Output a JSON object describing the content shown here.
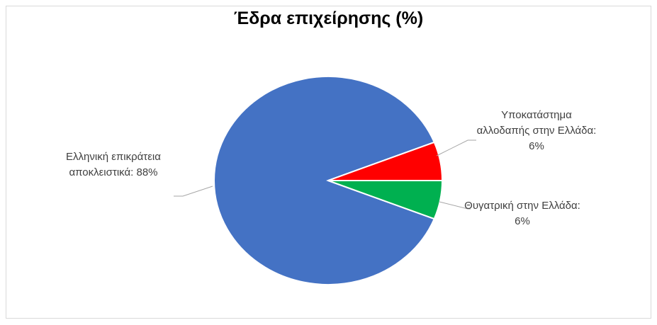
{
  "chart_data": {
    "type": "pie",
    "title": "Έδρα επιχείρησης (%)",
    "values": [
      88,
      6,
      6
    ],
    "value_labels": [
      "Ελληνική επικράτεια αποκλειστικά: 88%",
      "Υποκατάστημα αλλοδαπής στην Ελλάδα: 6%",
      "Θυγατρική στην Ελλάδα: 6%"
    ],
    "colors": [
      "#4472c4",
      "#ff0000",
      "#00b050"
    ]
  }
}
